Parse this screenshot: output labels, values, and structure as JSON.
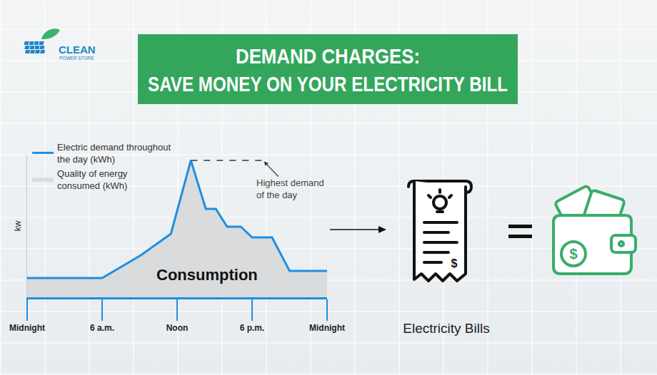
{
  "logo": {
    "name": "CLEAN",
    "tagline": "POWER STORE"
  },
  "header": {
    "title": "DEMAND CHARGES:\nSAVE MONEY ON YOUR ELECTRICITY BILL"
  },
  "chart_data": {
    "type": "line",
    "x": [
      0,
      6,
      9.1,
      11.5,
      13.1,
      14.3,
      15.1,
      16,
      17.1,
      18,
      19.6,
      21,
      24
    ],
    "series": [
      {
        "name": "Electric demand throughout\nthe day (kWh)",
        "type": "line",
        "color": "#1e8fe0",
        "values": [
          13.5,
          13.5,
          29.5,
          44.5,
          96,
          62,
          62,
          49.5,
          49.5,
          42,
          42,
          18.5,
          18.5
        ]
      },
      {
        "name": "Quality of energy\nconsumed (kWh)",
        "type": "area",
        "color": "#d9dbdd",
        "values": [
          13.5,
          13.5,
          29.5,
          44.5,
          96,
          62,
          62,
          49.5,
          49.5,
          42,
          42,
          18.5,
          18.5
        ]
      }
    ],
    "xlim": [
      0,
      24
    ],
    "xticks": [
      {
        "value": 0,
        "label": "Midnight"
      },
      {
        "value": 6,
        "label": "6 a.m."
      },
      {
        "value": 12,
        "label": "Noon"
      },
      {
        "value": 18,
        "label": "6 p.m."
      },
      {
        "value": 24,
        "label": "Midnight"
      }
    ],
    "ylim": [
      0,
      100
    ],
    "yticks": [],
    "y_label": "kw",
    "tick_labels": "x",
    "grid": false,
    "legend": "top left",
    "peak_label": "Highest demand\nof the day",
    "area_label": "Consumption"
  },
  "side_panel": {
    "label": "Electricity Bills",
    "symbol": "$"
  }
}
